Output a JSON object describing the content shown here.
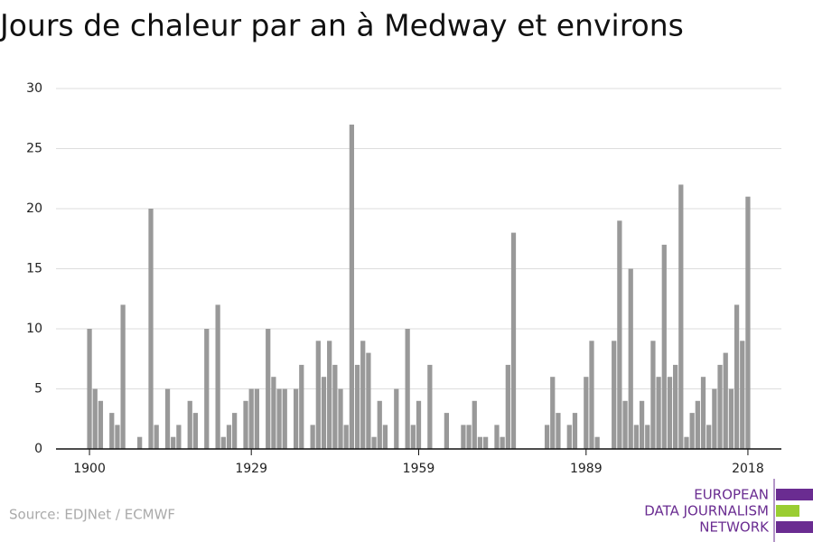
{
  "chart_data": {
    "type": "bar",
    "title": "Jours de chaleur par an à Medway et environs",
    "source": "Source: EDJNet / ECMWF",
    "logo": [
      "EUROPEAN",
      "DATA JOURNALISM",
      "NETWORK"
    ],
    "color": "#999999",
    "grid": true,
    "x": [
      1900,
      1901,
      1902,
      1903,
      1904,
      1905,
      1906,
      1907,
      1908,
      1909,
      1910,
      1911,
      1912,
      1913,
      1914,
      1915,
      1916,
      1917,
      1918,
      1919,
      1920,
      1921,
      1922,
      1923,
      1924,
      1925,
      1926,
      1927,
      1928,
      1929,
      1930,
      1931,
      1932,
      1933,
      1934,
      1935,
      1936,
      1937,
      1938,
      1939,
      1940,
      1941,
      1942,
      1943,
      1944,
      1945,
      1946,
      1947,
      1948,
      1949,
      1950,
      1951,
      1952,
      1953,
      1954,
      1955,
      1956,
      1957,
      1958,
      1959,
      1960,
      1961,
      1962,
      1963,
      1964,
      1965,
      1966,
      1967,
      1968,
      1969,
      1970,
      1971,
      1972,
      1973,
      1974,
      1975,
      1976,
      1977,
      1978,
      1979,
      1980,
      1981,
      1982,
      1983,
      1984,
      1985,
      1986,
      1987,
      1988,
      1989,
      1990,
      1991,
      1992,
      1993,
      1994,
      1995,
      1996,
      1997,
      1998,
      1999,
      2000,
      2001,
      2002,
      2003,
      2004,
      2005,
      2006,
      2007,
      2008,
      2009,
      2010,
      2011,
      2012,
      2013,
      2014,
      2015,
      2016,
      2017,
      2018
    ],
    "values": [
      10,
      5,
      4,
      0,
      3,
      2,
      12,
      0,
      0,
      1,
      0,
      20,
      2,
      0,
      5,
      1,
      2,
      0,
      4,
      3,
      0,
      10,
      0,
      12,
      1,
      2,
      3,
      0,
      4,
      5,
      5,
      0,
      10,
      6,
      5,
      5,
      0,
      5,
      7,
      0,
      2,
      9,
      6,
      9,
      7,
      5,
      2,
      27,
      7,
      9,
      8,
      1,
      4,
      2,
      0,
      5,
      0,
      10,
      2,
      4,
      0,
      7,
      0,
      0,
      3,
      0,
      0,
      2,
      2,
      4,
      1,
      1,
      0,
      2,
      1,
      7,
      18,
      0,
      0,
      0,
      0,
      0,
      2,
      6,
      3,
      0,
      2,
      3,
      0,
      6,
      9,
      1,
      0,
      0,
      9,
      19,
      4,
      15,
      2,
      4,
      2,
      9,
      6,
      17,
      6,
      7,
      22,
      1,
      3,
      4,
      6,
      2,
      5,
      7,
      8,
      5,
      12,
      9,
      21
    ],
    "xlim": [
      1894,
      2024
    ],
    "xticks": [
      1900,
      1929,
      1959,
      1989,
      2018
    ],
    "ylim": [
      0,
      30
    ],
    "yticks": [
      0,
      5,
      10,
      15,
      20,
      25,
      30
    ]
  }
}
